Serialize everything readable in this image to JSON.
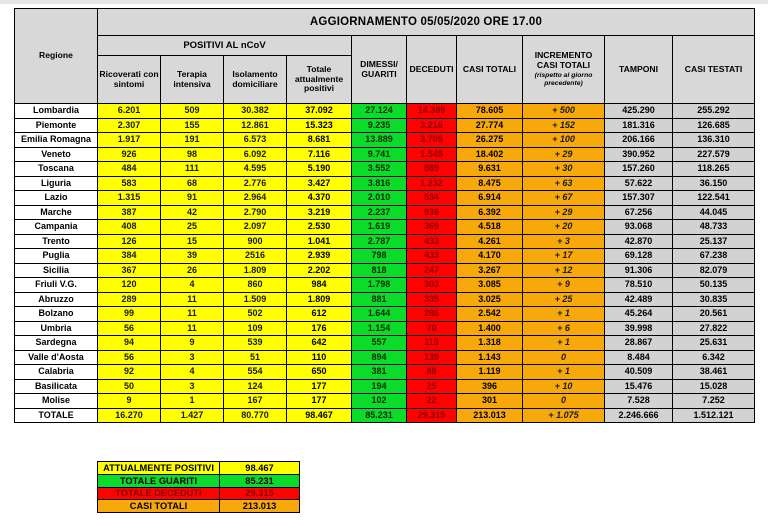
{
  "chart_data": {
    "type": "table",
    "title": "AGGIORNAMENTO 05/05/2020 ORE 17.00",
    "region_header": "Regione",
    "group_header": "POSITIVI AL nCoV",
    "columns": [
      "Ricoverati con sintomi",
      "Terapia intensiva",
      "Isolamento domiciliare",
      "Totale attualmente positivi",
      "DIMESSI/ GUARITI",
      "DECEDUTI",
      "CASI TOTALI",
      "INCREMENTO CASI TOTALI",
      "TAMPONI",
      "CASI TESTATI"
    ],
    "incremento_note": "(rispetto al giorno precedente)",
    "rows": [
      [
        "Lombardia",
        "6.201",
        "509",
        "30.382",
        "37.092",
        "27.124",
        "14.389",
        "78.605",
        "+ 500",
        "425.290",
        "255.292"
      ],
      [
        "Piemonte",
        "2.307",
        "155",
        "12.861",
        "15.323",
        "9.235",
        "3.216",
        "27.774",
        "+ 152",
        "181.316",
        "126.685"
      ],
      [
        "Emilia Romagna",
        "1.917",
        "191",
        "6.573",
        "8.681",
        "13.889",
        "3.705",
        "26.275",
        "+ 100",
        "206.166",
        "136.310"
      ],
      [
        "Veneto",
        "926",
        "98",
        "6.092",
        "7.116",
        "9.741",
        "1.545",
        "18.402",
        "+ 29",
        "390.952",
        "227.579"
      ],
      [
        "Toscana",
        "484",
        "111",
        "4.595",
        "5.190",
        "3.552",
        "889",
        "9.631",
        "+ 30",
        "157.260",
        "118.265"
      ],
      [
        "Liguria",
        "583",
        "68",
        "2.776",
        "3.427",
        "3.816",
        "1.232",
        "8.475",
        "+ 63",
        "57.622",
        "36.150"
      ],
      [
        "Lazio",
        "1.315",
        "91",
        "2.964",
        "4.370",
        "2.010",
        "534",
        "6.914",
        "+ 67",
        "157.307",
        "122.541"
      ],
      [
        "Marche",
        "387",
        "42",
        "2.790",
        "3.219",
        "2.237",
        "936",
        "6.392",
        "+ 29",
        "67.256",
        "44.045"
      ],
      [
        "Campania",
        "408",
        "25",
        "2.097",
        "2.530",
        "1.619",
        "369",
        "4.518",
        "+ 20",
        "93.068",
        "48.733"
      ],
      [
        "Trento",
        "126",
        "15",
        "900",
        "1.041",
        "2.787",
        "433",
        "4.261",
        "+ 3",
        "42.870",
        "25.137"
      ],
      [
        "Puglia",
        "384",
        "39",
        "2516",
        "2.939",
        "798",
        "433",
        "4.170",
        "+ 17",
        "69.128",
        "67.238"
      ],
      [
        "Sicilia",
        "367",
        "26",
        "1.809",
        "2.202",
        "818",
        "247",
        "3.267",
        "+ 12",
        "91.306",
        "82.079"
      ],
      [
        "Friuli V.G.",
        "120",
        "4",
        "860",
        "984",
        "1.798",
        "303",
        "3.085",
        "+ 9",
        "78.510",
        "50.135"
      ],
      [
        "Abruzzo",
        "289",
        "11",
        "1.509",
        "1.809",
        "881",
        "335",
        "3.025",
        "+ 25",
        "42.489",
        "30.835"
      ],
      [
        "Bolzano",
        "99",
        "11",
        "502",
        "612",
        "1.644",
        "286",
        "2.542",
        "+ 1",
        "45.264",
        "20.561"
      ],
      [
        "Umbria",
        "56",
        "11",
        "109",
        "176",
        "1.154",
        "70",
        "1.400",
        "+ 6",
        "39.998",
        "27.822"
      ],
      [
        "Sardegna",
        "94",
        "9",
        "539",
        "642",
        "557",
        "119",
        "1.318",
        "+ 1",
        "28.867",
        "25.631"
      ],
      [
        "Valle d'Aosta",
        "56",
        "3",
        "51",
        "110",
        "894",
        "139",
        "1.143",
        "0",
        "8.484",
        "6.342"
      ],
      [
        "Calabria",
        "92",
        "4",
        "554",
        "650",
        "381",
        "88",
        "1.119",
        "+ 1",
        "40.509",
        "38.461"
      ],
      [
        "Basilicata",
        "50",
        "3",
        "124",
        "177",
        "194",
        "25",
        "396",
        "+ 10",
        "15.476",
        "15.028"
      ],
      [
        "Molise",
        "9",
        "1",
        "167",
        "177",
        "102",
        "22",
        "301",
        "0",
        "7.528",
        "7.252"
      ]
    ],
    "total_row": [
      "TOTALE",
      "16.270",
      "1.427",
      "80.770",
      "98.467",
      "85.231",
      "29.315",
      "213.013",
      "+ 1.075",
      "2.246.666",
      "1.512.121"
    ],
    "summary": [
      {
        "label": "ATTUALMENTE POSITIVI",
        "value": "98.467",
        "color": "yellow"
      },
      {
        "label": "TOTALE GUARITI",
        "value": "85.231",
        "color": "green"
      },
      {
        "label": "TOTALE DECEDUTI",
        "value": "29.315",
        "color": "red"
      },
      {
        "label": "CASI TOTALI",
        "value": "213.013",
        "color": "orange"
      }
    ]
  },
  "colors": {
    "yellow": "#FFFF00",
    "green": "#0BDC29",
    "red": "#FD0200",
    "orange": "#F7A90B",
    "orange_header": "#FEC10A",
    "header_gray": "#D8D8D8",
    "data_gray": "#D2D2D2",
    "deaths_text": "#8B0000"
  }
}
